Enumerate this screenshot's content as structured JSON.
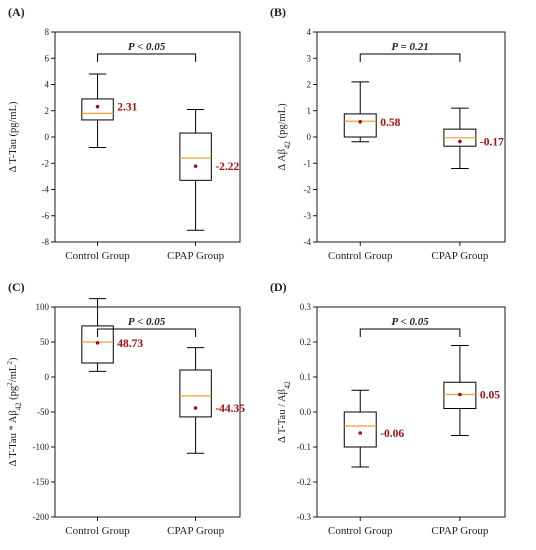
{
  "chart_data": [
    {
      "type": "box",
      "panel_label": "(A)",
      "ylabel": "Δ T-Tau (pg/mL)",
      "ylim": [
        -8,
        8
      ],
      "yticks": [
        -8,
        -6,
        -4,
        -2,
        0,
        2,
        4,
        6,
        8
      ],
      "categories": [
        "Control Group",
        "CPAP Group"
      ],
      "significance": "P < 0.05",
      "boxes": [
        {
          "category": "Control Group",
          "whisker_low": -0.8,
          "q1": 1.3,
          "median": 1.8,
          "q3": 2.9,
          "whisker_high": 4.8,
          "mean": 2.31,
          "mean_label": "2.31"
        },
        {
          "category": "CPAP Group",
          "whisker_low": -7.1,
          "q1": -3.3,
          "median": -1.6,
          "q3": 0.3,
          "whisker_high": 2.1,
          "mean": -2.22,
          "mean_label": "-2.22"
        }
      ]
    },
    {
      "type": "box",
      "panel_label": "(B)",
      "ylabel": "Δ Aβ42 (pg/mL)",
      "ylim": [
        -4,
        4
      ],
      "yticks": [
        -4,
        -3,
        -2,
        -1,
        0,
        1,
        2,
        3,
        4
      ],
      "categories": [
        "Control Group",
        "CPAP Group"
      ],
      "significance": "P = 0.21",
      "boxes": [
        {
          "category": "Control Group",
          "whisker_low": -0.18,
          "q1": 0.0,
          "median": 0.6,
          "q3": 0.88,
          "whisker_high": 2.1,
          "mean": 0.58,
          "mean_label": "0.58"
        },
        {
          "category": "CPAP Group",
          "whisker_low": -1.2,
          "q1": -0.35,
          "median": -0.03,
          "q3": 0.3,
          "whisker_high": 1.1,
          "mean": -0.17,
          "mean_label": "-0.17"
        }
      ]
    },
    {
      "type": "box",
      "panel_label": "(C)",
      "ylabel": "Δ T-Tau * Aβ42 (pg²/mL²)",
      "ylim": [
        -200,
        100
      ],
      "yticks": [
        -200,
        -150,
        -100,
        -50,
        0,
        50,
        100
      ],
      "categories": [
        "Control Group",
        "CPAP Group"
      ],
      "significance": "P < 0.05",
      "boxes": [
        {
          "category": "Control Group",
          "whisker_low": 8,
          "q1": 20,
          "median": 50,
          "q3": 73,
          "whisker_high": 112,
          "mean": 48.73,
          "mean_label": "48.73"
        },
        {
          "category": "CPAP Group",
          "whisker_low": -109,
          "q1": -57,
          "median": -27,
          "q3": 10,
          "whisker_high": 42,
          "mean": -44.35,
          "mean_label": "-44.35"
        }
      ]
    },
    {
      "type": "box",
      "panel_label": "(D)",
      "ylabel": "Δ T-Tau / Aβ42",
      "ylim": [
        -0.3,
        0.3
      ],
      "yticks": [
        -0.3,
        -0.2,
        -0.1,
        0.0,
        0.1,
        0.2,
        0.3
      ],
      "categories": [
        "Control Group",
        "CPAP Group"
      ],
      "significance": "P < 0.05",
      "boxes": [
        {
          "category": "Control Group",
          "whisker_low": -0.157,
          "q1": -0.1,
          "median": -0.04,
          "q3": 0.0,
          "whisker_high": 0.062,
          "mean": -0.06,
          "mean_label": "-0.06"
        },
        {
          "category": "CPAP Group",
          "whisker_low": -0.067,
          "q1": 0.01,
          "median": 0.05,
          "q3": 0.085,
          "whisker_high": 0.19,
          "mean": 0.05,
          "mean_label": "0.05"
        }
      ]
    }
  ]
}
